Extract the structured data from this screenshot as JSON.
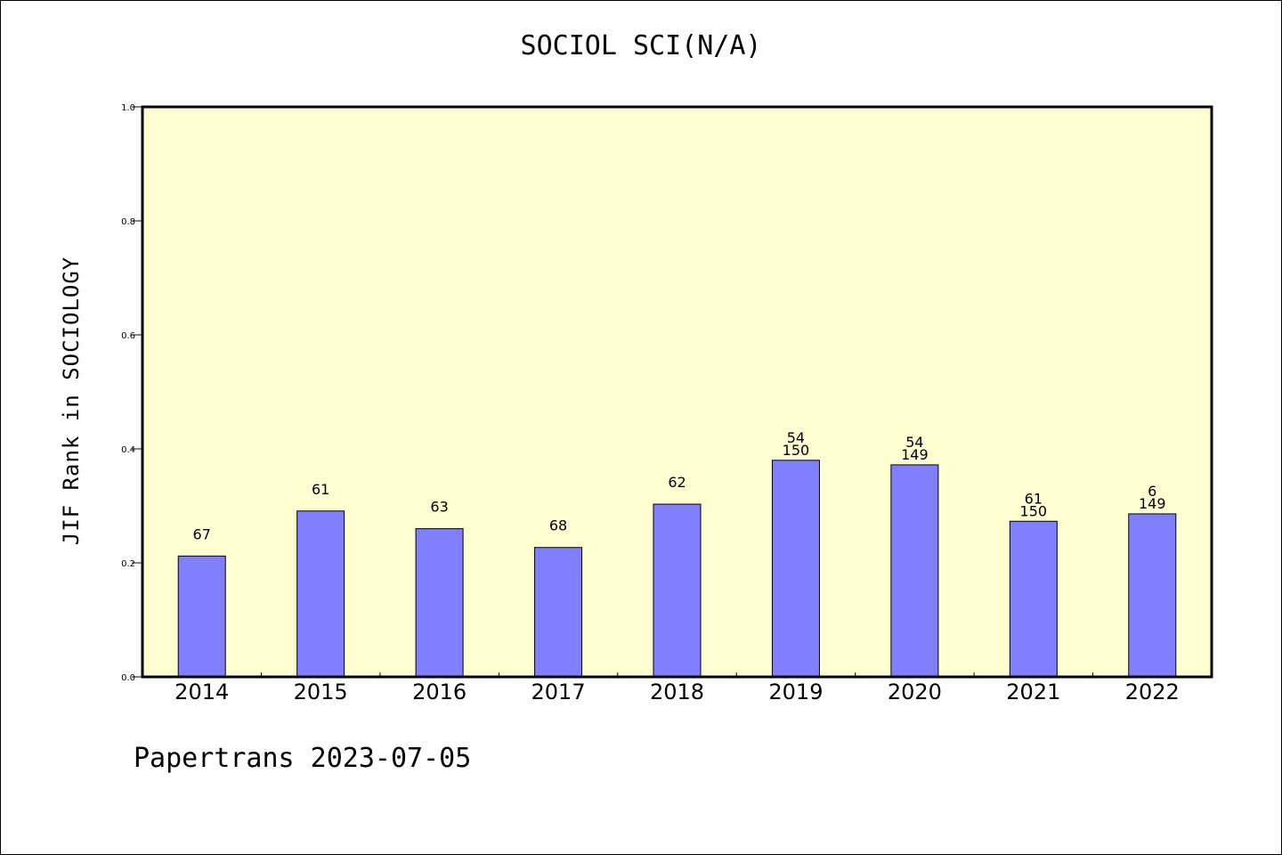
{
  "chart_data": {
    "type": "bar",
    "title": "SOCIOL SCI(N/A)",
    "xlabel": "",
    "ylabel": "JIF Rank in SOCIOLOGY",
    "ylim": [
      0,
      1.0
    ],
    "yticks": [
      "0.0",
      "0.2",
      "0.4",
      "0.6",
      "0.8",
      "1.0"
    ],
    "categories": [
      "2014",
      "2015",
      "2016",
      "2017",
      "2018",
      "2019",
      "2020",
      "2021",
      "2022"
    ],
    "values": [
      0.212,
      0.291,
      0.26,
      0.227,
      0.303,
      0.38,
      0.372,
      0.273,
      0.286
    ],
    "labels": [
      [
        "67"
      ],
      [
        "61"
      ],
      [
        "63"
      ],
      [
        "68"
      ],
      [
        "62"
      ],
      [
        "54",
        "150"
      ],
      [
        "54",
        "149"
      ],
      [
        "61",
        "150"
      ],
      [
        "6",
        "149"
      ]
    ],
    "colors": {
      "plot_bg": "#ffffd2",
      "bar": "#8080ff"
    },
    "grid": false,
    "legend": "none"
  },
  "footer": "Papertrans 2023-07-05"
}
